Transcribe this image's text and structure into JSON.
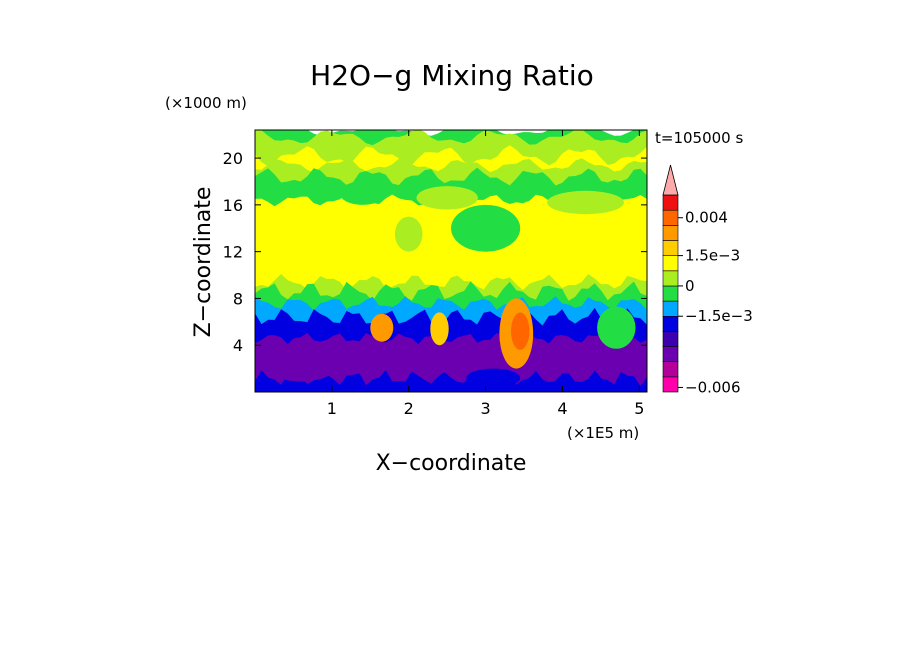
{
  "chart_data": {
    "type": "contour",
    "title": "H2O−g Mixing Ratio",
    "time_label": "t=105000 s",
    "xlabel": "X−coordinate",
    "ylabel": "Z−coordinate",
    "x_unit": "(×1E5 m)",
    "y_unit": "(×1000 m)",
    "xlim": [
      0,
      5.1
    ],
    "ylim": [
      0,
      22.4
    ],
    "x_ticks": [
      {
        "value": 1,
        "label": "1"
      },
      {
        "value": 2,
        "label": "2"
      },
      {
        "value": 3,
        "label": "3"
      },
      {
        "value": 4,
        "label": "4"
      },
      {
        "value": 5,
        "label": "5"
      }
    ],
    "y_ticks": [
      {
        "value": 4,
        "label": "4"
      },
      {
        "value": 8,
        "label": "8"
      },
      {
        "value": 12,
        "label": "12"
      },
      {
        "value": 16,
        "label": "16"
      },
      {
        "value": 20,
        "label": "20"
      }
    ],
    "colorbar": {
      "colors": [
        "#ff00aa",
        "#b3009a",
        "#6a00b0",
        "#3c00b0",
        "#0000e0",
        "#00a8ff",
        "#22dd44",
        "#aaee22",
        "#ffff00",
        "#ffcc00",
        "#ff9900",
        "#ff6600",
        "#ee1111",
        "#ffaaaa"
      ],
      "labels": [
        {
          "level": 0.004,
          "label": "0.004",
          "pos": 1.5
        },
        {
          "level": 0.0015,
          "label": "1.5e−3",
          "pos": 4
        },
        {
          "level": 0,
          "label": "0",
          "pos": 6
        },
        {
          "level": -0.0015,
          "label": "−1.5e−3",
          "pos": 8
        },
        {
          "level": -0.006,
          "label": "−0.006",
          "pos": 12.7
        }
      ]
    },
    "bands": [
      {
        "z": 22.4,
        "color": "#22dd44"
      },
      {
        "z": 21.8,
        "color": "#aaee22"
      },
      {
        "z": 20.2,
        "color": "#ffff00"
      },
      {
        "z": 19.4,
        "color": "#aaee22"
      },
      {
        "z": 18.4,
        "color": "#22dd44"
      },
      {
        "z": 16.4,
        "color": "#ffff00"
      },
      {
        "z": 9.4,
        "color": "#aaee22"
      },
      {
        "z": 8.6,
        "color": "#22dd44"
      },
      {
        "z": 7.6,
        "color": "#00a8ff"
      },
      {
        "z": 6.4,
        "color": "#0000e0"
      },
      {
        "z": 4.6,
        "color": "#6a00b0"
      },
      {
        "z": 1.2,
        "color": "#0000e0"
      }
    ],
    "features": [
      {
        "x": 3.4,
        "z": 5.0,
        "rx": 0.22,
        "rz": 3.0,
        "color": "#ff9900"
      },
      {
        "x": 3.45,
        "z": 5.2,
        "rx": 0.12,
        "rz": 1.6,
        "color": "#ff6600"
      },
      {
        "x": 1.65,
        "z": 5.5,
        "rx": 0.15,
        "rz": 1.2,
        "color": "#ff9900"
      },
      {
        "x": 2.4,
        "z": 5.4,
        "rx": 0.12,
        "rz": 1.4,
        "color": "#ffcc00"
      },
      {
        "x": 1.4,
        "z": 17.0,
        "rx": 0.3,
        "rz": 1.0,
        "color": "#22dd44"
      },
      {
        "x": 2.5,
        "z": 16.6,
        "rx": 0.4,
        "rz": 1.0,
        "color": "#aaee22"
      },
      {
        "x": 3.0,
        "z": 14.0,
        "rx": 0.45,
        "rz": 2.0,
        "color": "#22dd44"
      },
      {
        "x": 4.3,
        "z": 16.2,
        "rx": 0.5,
        "rz": 1.0,
        "color": "#aaee22"
      },
      {
        "x": 2.0,
        "z": 13.5,
        "rx": 0.18,
        "rz": 1.5,
        "color": "#aaee22"
      },
      {
        "x": 0.6,
        "z": 2.5,
        "rx": 0.5,
        "rz": 1.6,
        "color": "#6a00b0"
      },
      {
        "x": 3.1,
        "z": 1.2,
        "rx": 0.35,
        "rz": 0.8,
        "color": "#0000e0"
      },
      {
        "x": 4.7,
        "z": 5.5,
        "rx": 0.25,
        "rz": 1.8,
        "color": "#22dd44"
      }
    ]
  }
}
